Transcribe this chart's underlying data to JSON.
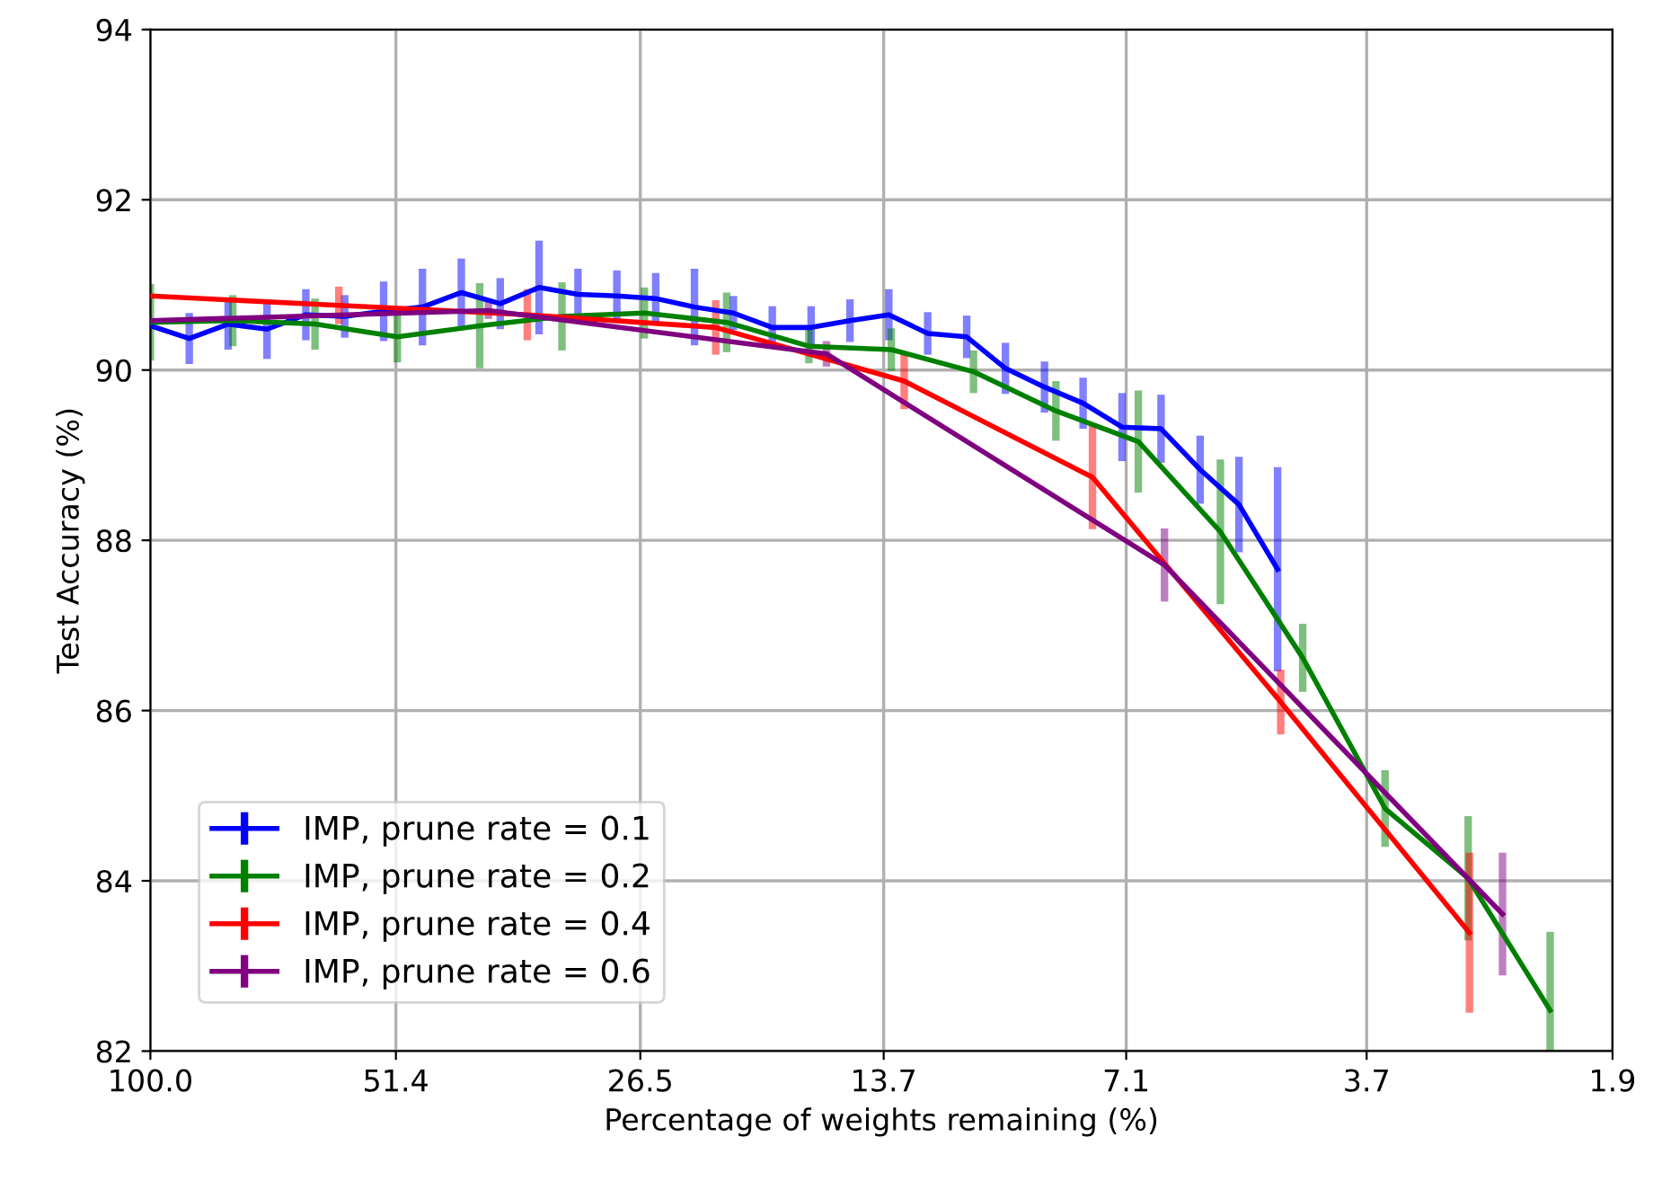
{
  "chart_data": {
    "type": "line",
    "xlabel": "Percentage of weights remaining (%)",
    "ylabel": "Test Accuracy (%)",
    "log": "x",
    "xlim": [
      100,
      1.9
    ],
    "xticks": [
      {
        "value": 100,
        "label": "100.0"
      },
      51.4,
      26.5,
      13.7,
      7.1,
      3.7,
      1.9
    ],
    "ylim": [
      82,
      94
    ],
    "yticks": [
      82,
      84,
      86,
      88,
      90,
      92,
      94
    ],
    "grid": true,
    "legend": "bottom left",
    "line_style": "solid",
    "series": [
      {
        "name": "IMP, prune rate = 0.1",
        "color": "#0000ff",
        "x": [
          100,
          90,
          81,
          72.9,
          65.61,
          59.05,
          53.14,
          47.83,
          43.05,
          38.74,
          34.87,
          31.38,
          28.24,
          25.42,
          22.88,
          20.59,
          18.53,
          16.68,
          15.01,
          13.51,
          12.16,
          10.94,
          9.85,
          8.86,
          7.98,
          7.18,
          6.46,
          5.81,
          5.23,
          4.71
        ],
        "values": [
          90.52,
          90.37,
          90.54,
          90.48,
          90.65,
          90.63,
          90.69,
          90.74,
          90.91,
          90.78,
          90.97,
          90.89,
          90.87,
          90.84,
          90.74,
          90.67,
          90.5,
          90.5,
          90.58,
          90.65,
          90.43,
          90.39,
          90.02,
          89.8,
          89.61,
          89.33,
          89.31,
          88.83,
          88.42,
          87.66
        ],
        "errors": [
          null,
          0.3,
          0.3,
          0.35,
          0.3,
          0.25,
          0.35,
          0.45,
          0.4,
          0.3,
          0.55,
          0.3,
          0.3,
          0.3,
          0.45,
          0.2,
          0.25,
          0.25,
          0.25,
          0.3,
          0.25,
          0.25,
          0.3,
          0.3,
          0.3,
          0.4,
          0.4,
          0.4,
          0.56,
          1.2
        ]
      },
      {
        "name": "IMP, prune rate = 0.2",
        "color": "#008000",
        "x": [
          100,
          80,
          64,
          51.2,
          40.96,
          32.77,
          26.21,
          20.97,
          16.78,
          13.42,
          10.74,
          8.59,
          6.87,
          5.5,
          4.4,
          3.52,
          2.81,
          2.25
        ],
        "values": [
          90.56,
          90.58,
          90.54,
          90.39,
          90.52,
          90.63,
          90.67,
          90.56,
          90.28,
          90.24,
          89.98,
          89.52,
          89.16,
          88.1,
          86.62,
          84.85,
          84.03,
          82.48
        ],
        "errors": [
          0.45,
          0.3,
          0.3,
          0.3,
          0.5,
          0.4,
          0.3,
          0.35,
          0.2,
          0.25,
          0.25,
          0.35,
          0.6,
          0.85,
          0.4,
          0.45,
          0.73,
          [
            82.0,
            83.4
          ]
        ]
      },
      {
        "name": "IMP, prune rate = 0.4",
        "color": "#ff0000",
        "x": [
          100,
          60,
          36,
          21.6,
          12.96,
          7.78,
          4.67,
          2.8
        ],
        "values": [
          90.87,
          90.76,
          90.65,
          90.5,
          89.87,
          88.74,
          86.1,
          83.39
        ],
        "errors": [
          null,
          0.22,
          0.3,
          0.32,
          0.33,
          0.61,
          0.38,
          0.94
        ]
      },
      {
        "name": "IMP, prune rate = 0.6",
        "color": "#800080",
        "x": [
          100,
          40,
          16,
          6.4,
          2.56
        ],
        "values": [
          90.58,
          90.7,
          90.19,
          87.71,
          83.61
        ],
        "errors": [
          null,
          0.1,
          0.15,
          0.43,
          0.72
        ]
      }
    ]
  }
}
